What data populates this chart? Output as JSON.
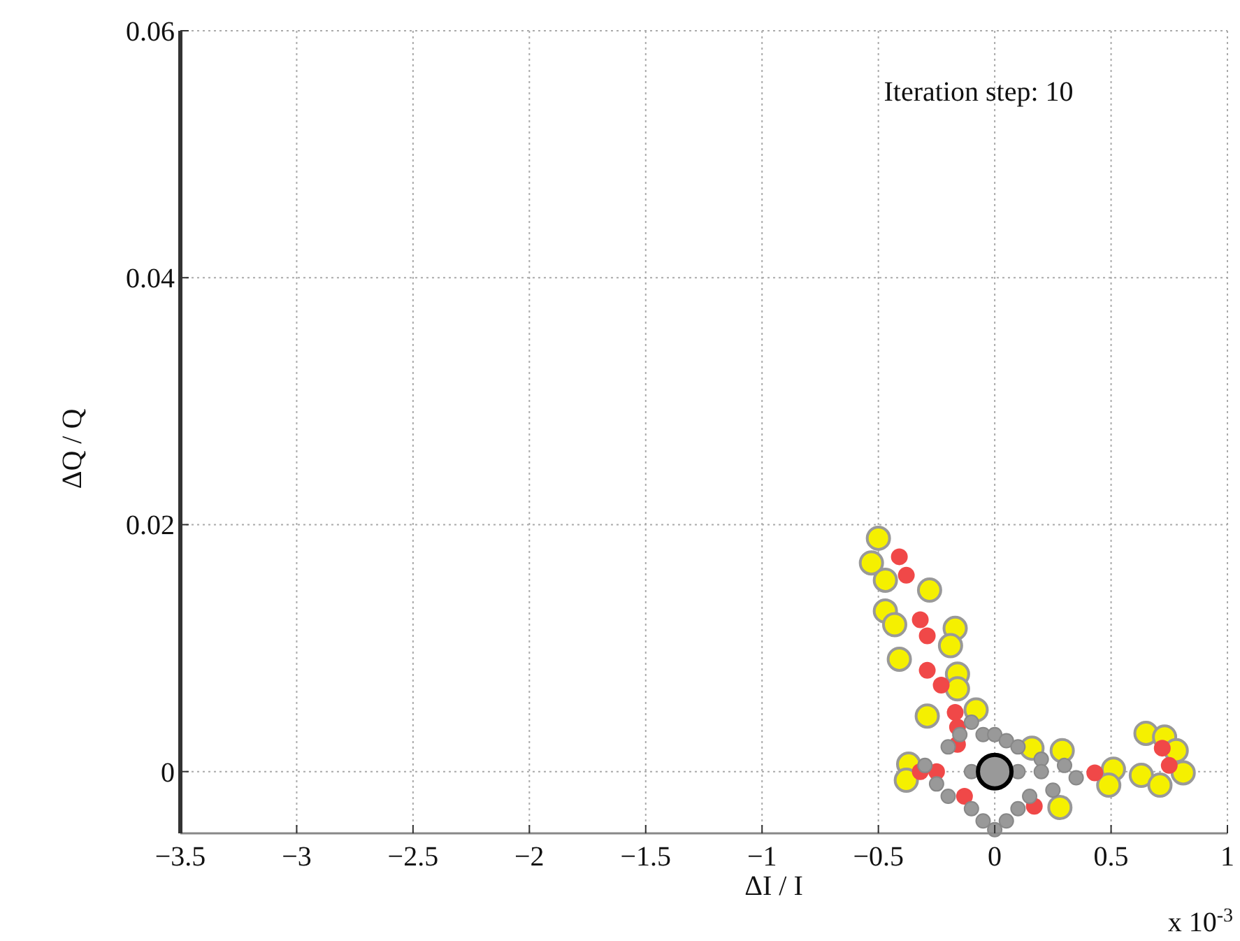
{
  "chart_data": {
    "type": "scatter",
    "xlabel": "ΔI / I",
    "ylabel": "ΔQ / Q",
    "annotations": [
      "Iteration step: 10",
      "x 10$^{-3}$"
    ],
    "xlim": [
      -3.5,
      1
    ],
    "xticks": [
      -3.5,
      -3,
      -2.5,
      -2,
      -1.5,
      -1,
      -0.5,
      0,
      0.5,
      1
    ],
    "ylim": [
      -0.005,
      0.06
    ],
    "yticks": [
      0,
      0.02,
      0.04,
      0.06
    ],
    "grid": true,
    "marker": "circle",
    "series": [
      {
        "color": "#f5f000",
        "x": [
          -0.5,
          -0.53,
          -0.47,
          -0.28,
          -0.47,
          -0.43,
          -0.17,
          -0.19,
          -0.41,
          -0.16,
          -0.16,
          -0.29,
          -0.08,
          -0.37,
          -0.38,
          0.16,
          0.29,
          0.51,
          0.49,
          0.28,
          0.65,
          0.73,
          0.63,
          0.81,
          0.71,
          0.78
        ],
        "values": [
          0.0189,
          0.0169,
          0.0155,
          0.0147,
          0.013,
          0.0119,
          0.0116,
          0.0102,
          0.0091,
          0.0079,
          0.0067,
          0.0045,
          0.005,
          0.0006,
          -0.0007,
          0.0019,
          0.0017,
          0.0002,
          -0.0011,
          -0.0029,
          0.0031,
          0.0028,
          -0.0003,
          -0.0001,
          -0.0011,
          0.0017
        ]
      },
      {
        "color": "#f04848",
        "x": [
          -0.41,
          -0.38,
          -0.32,
          -0.29,
          -0.29,
          -0.23,
          -0.17,
          -0.16,
          -0.16,
          -0.32,
          -0.25,
          -0.13,
          0.43,
          0.17,
          0.72,
          0.75
        ],
        "values": [
          0.0174,
          0.0159,
          0.0123,
          0.011,
          0.0082,
          0.007,
          0.0048,
          0.0036,
          0.0022,
          0.0,
          0.0,
          -0.002,
          -0.0001,
          -0.0028,
          0.0019,
          0.0005
        ]
      },
      {
        "color": "#999999",
        "x": [
          -0.2,
          -0.15,
          -0.1,
          -0.05,
          0,
          0.05,
          0.1,
          0.2,
          0.3,
          0.35,
          0.25,
          0.15,
          0.1,
          0.05,
          0,
          -0.05,
          -0.1,
          -0.2,
          -0.25,
          -0.3,
          -0.1,
          0.1,
          0.2
        ],
        "values": [
          0.002,
          0.003,
          0.004,
          0.003,
          0.003,
          0.0025,
          0.002,
          0.001,
          0.0005,
          -0.0005,
          -0.0015,
          -0.002,
          -0.003,
          -0.004,
          -0.0047,
          -0.004,
          -0.003,
          -0.002,
          -0.001,
          0.0005,
          0,
          0,
          0
        ]
      },
      {
        "color": "#000000",
        "x": [
          0
        ],
        "values": [
          0
        ]
      }
    ]
  }
}
